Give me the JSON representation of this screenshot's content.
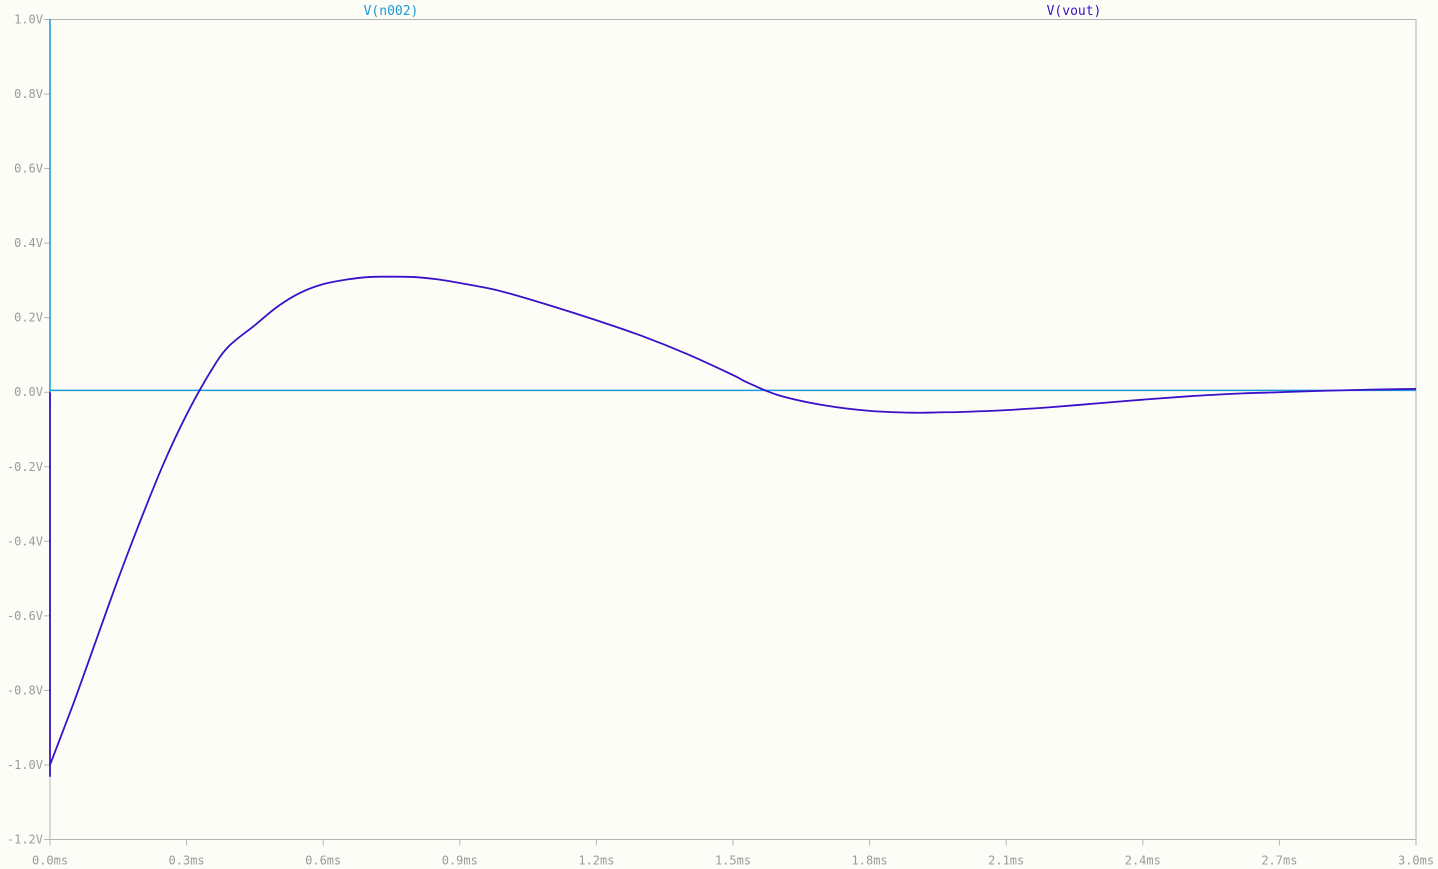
{
  "chart_data": {
    "type": "line",
    "xlim": [
      0.0,
      3.0
    ],
    "ylim": [
      -1.2,
      1.0
    ],
    "x_unit": "ms",
    "y_unit": "V",
    "x_ticks": [
      "0.0ms",
      "0.3ms",
      "0.6ms",
      "0.9ms",
      "1.2ms",
      "1.5ms",
      "1.8ms",
      "2.1ms",
      "2.4ms",
      "2.7ms",
      "3.0ms"
    ],
    "x_tick_values": [
      0.0,
      0.3,
      0.6,
      0.9,
      1.2,
      1.5,
      1.8,
      2.1,
      2.4,
      2.7,
      3.0
    ],
    "y_ticks": [
      "1.0V",
      "0.8V",
      "0.6V",
      "0.4V",
      "0.2V",
      "0.0V",
      "-0.2V",
      "-0.4V",
      "-0.6V",
      "-0.8V",
      "-1.0V",
      "-1.2V"
    ],
    "y_tick_values": [
      1.0,
      0.8,
      0.6,
      0.4,
      0.2,
      0.0,
      -0.2,
      -0.4,
      -0.6,
      -0.8,
      -1.0,
      -1.2
    ],
    "grid": false,
    "background": "#fdfdf8",
    "axis_color": "#b4b4b4",
    "tick_label_color": "#9a9a9a",
    "series": [
      {
        "name": "V(n002)",
        "color": "#1a9ad6",
        "x": [
          0.0,
          0.0,
          0.0,
          3.0
        ],
        "y": [
          -0.03,
          1.0,
          0.005,
          0.005
        ]
      },
      {
        "name": "V(vout)",
        "color": "#3a10c8",
        "x": [
          0.0,
          0.0,
          0.0,
          0.05,
          0.1,
          0.15,
          0.2,
          0.25,
          0.3,
          0.35,
          0.39,
          0.45,
          0.5,
          0.55,
          0.6,
          0.65,
          0.7,
          0.75,
          0.8,
          0.85,
          0.9,
          0.95,
          1.0,
          1.1,
          1.2,
          1.3,
          1.4,
          1.5,
          1.53,
          1.6,
          1.7,
          1.8,
          1.9,
          1.95,
          2.0,
          2.1,
          2.2,
          2.3,
          2.4,
          2.5,
          2.6,
          2.7,
          2.8,
          2.9,
          3.0
        ],
        "y": [
          0.0,
          -1.03,
          -1.0,
          -0.84,
          -0.67,
          -0.5,
          -0.34,
          -0.19,
          -0.06,
          0.05,
          0.12,
          0.18,
          0.23,
          0.267,
          0.29,
          0.302,
          0.309,
          0.31,
          0.309,
          0.303,
          0.293,
          0.282,
          0.268,
          0.232,
          0.193,
          0.151,
          0.102,
          0.046,
          0.027,
          -0.008,
          -0.035,
          -0.05,
          -0.055,
          -0.054,
          -0.053,
          -0.048,
          -0.04,
          -0.03,
          -0.02,
          -0.011,
          -0.004,
          0.0,
          0.004,
          0.007,
          0.009
        ]
      }
    ]
  }
}
